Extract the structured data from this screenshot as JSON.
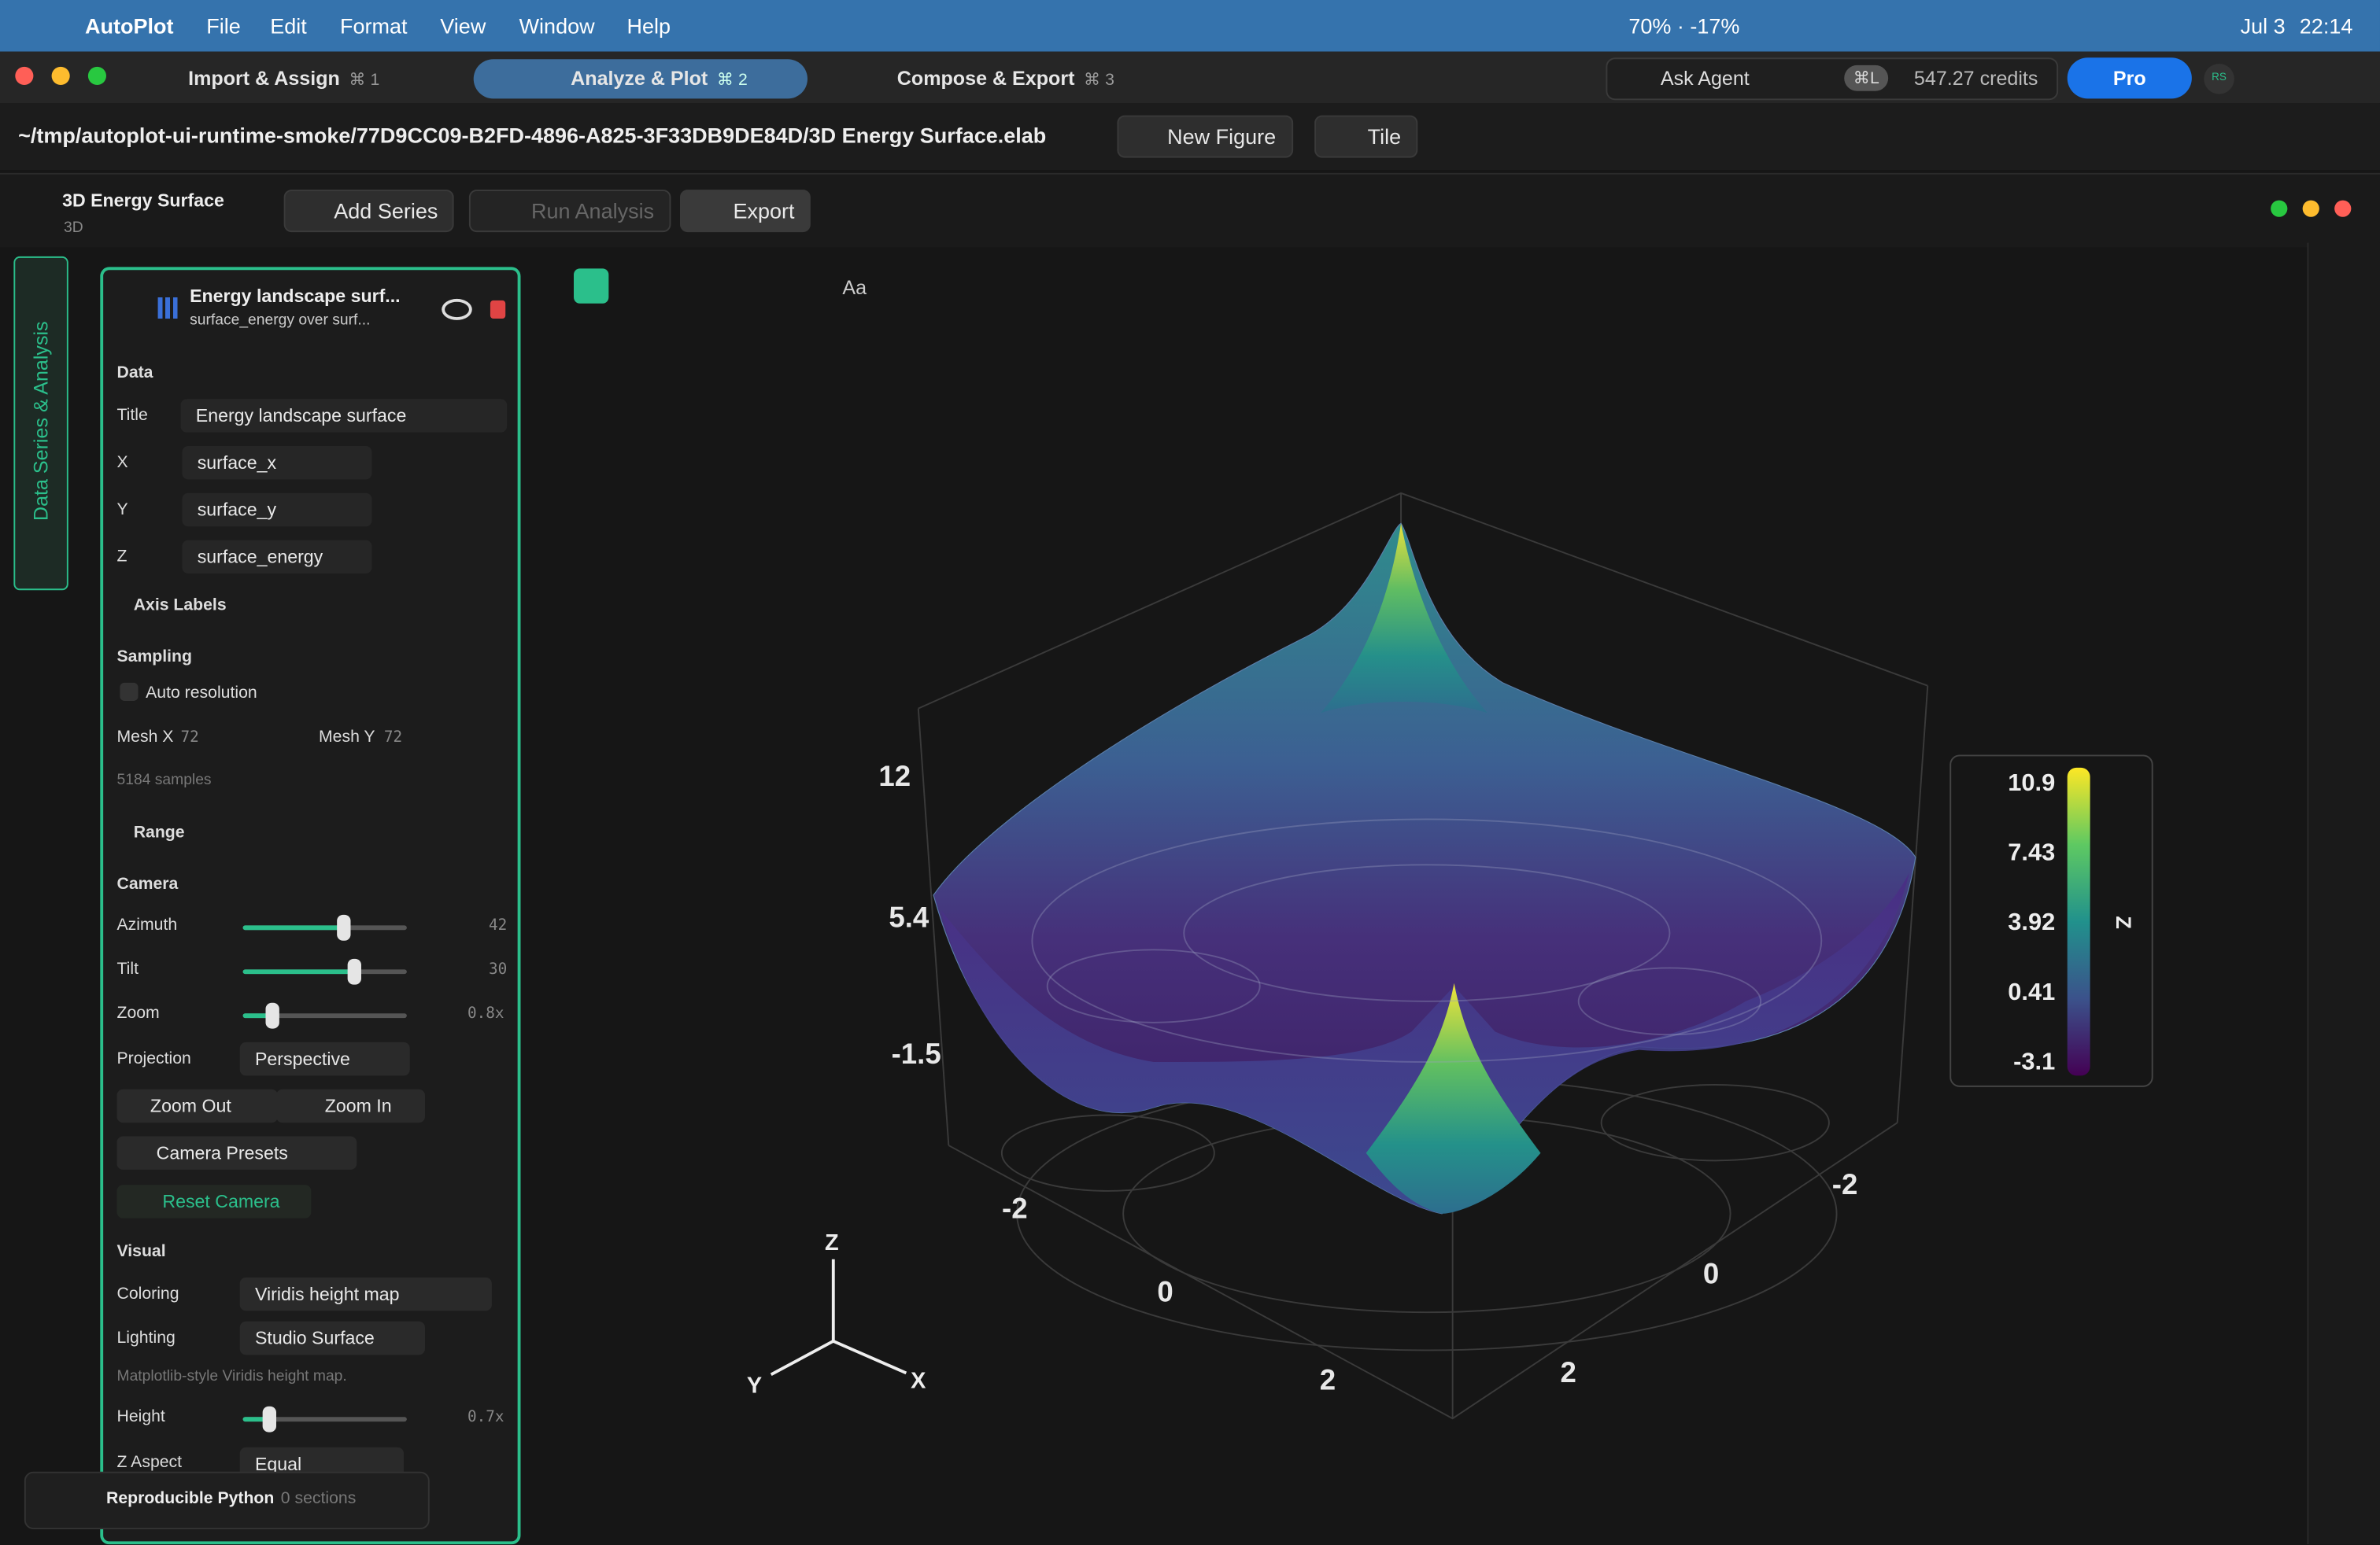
{
  "menubar": {
    "app": "AutoPlot",
    "menus": [
      "File",
      "Edit",
      "Format",
      "View",
      "Window",
      "Help"
    ],
    "battery": "70% · -17%",
    "date": "Jul 3",
    "time": "22:14"
  },
  "tabs": [
    {
      "label": "Import & Assign",
      "shortcut": "⌘ 1"
    },
    {
      "label": "Analyze & Plot",
      "shortcut": "⌘ 2"
    },
    {
      "label": "Compose & Export",
      "shortcut": "⌘ 3"
    }
  ],
  "account": {
    "agent": "Ask Agent",
    "shortcut": "⌘L",
    "credits": "547.27 credits",
    "plan": "Pro",
    "avatar": "RS"
  },
  "document": {
    "path": "~/tmp/autoplot-ui-runtime-smoke/77D9CC09-B2FD-4896-A825-3F33DB9DE84D/3D Energy Surface.elab",
    "new_figure": "New Figure",
    "tile": "Tile"
  },
  "figure": {
    "title": "3D Energy Surface",
    "kind": "3D",
    "add_series": "Add Series",
    "run_analysis": "Run Analysis",
    "export": "Export"
  },
  "sidebar_tab": "Data Series & Analysis",
  "series": {
    "name": "Energy landscape surf...",
    "subtitle": "surface_energy over surf...",
    "data": {
      "heading": "Data",
      "title_label": "Title",
      "title": "Energy landscape surface",
      "x_label": "X",
      "x": "surface_x",
      "y_label": "Y",
      "y": "surface_y",
      "z_label": "Z",
      "z": "surface_energy"
    },
    "axis_labels": "Axis Labels",
    "sampling": {
      "heading": "Sampling",
      "auto": "Auto resolution",
      "mesh_x_label": "Mesh X",
      "mesh_x": "72",
      "mesh_y_label": "Mesh Y",
      "mesh_y": "72",
      "samples": "5184 samples"
    },
    "range": "Range",
    "camera": {
      "heading": "Camera",
      "azimuth_label": "Azimuth",
      "azimuth": "42",
      "tilt_label": "Tilt",
      "tilt": "30",
      "zoom_label": "Zoom",
      "zoom": "0.8x",
      "projection_label": "Projection",
      "projection": "Perspective",
      "zoom_out": "Zoom Out",
      "zoom_in": "Zoom In",
      "presets": "Camera Presets",
      "reset": "Reset Camera"
    },
    "visual": {
      "heading": "Visual",
      "coloring_label": "Coloring",
      "coloring": "Viridis height map",
      "lighting_label": "Lighting",
      "lighting": "Studio Surface",
      "note": "Matplotlib-style Viridis height map.",
      "height_label": "Height",
      "height": "0.7x",
      "z_aspect_label": "Z Aspect",
      "z_aspect": "Equal"
    }
  },
  "toolbar": {
    "text_tool": "Aa"
  },
  "plot": {
    "z_ticks": [
      "12",
      "5.4",
      "-1.5"
    ],
    "x_ticks": [
      "-2",
      "0",
      "2"
    ],
    "y_ticks": [
      "-2",
      "0",
      "2"
    ],
    "colorbar": {
      "ticks": [
        "10.9",
        "7.43",
        "3.92",
        "0.41",
        "-3.1"
      ],
      "label": "Z"
    },
    "triad": {
      "z": "Z",
      "y": "Y",
      "x": "X"
    }
  },
  "python": {
    "title": "Reproducible Python",
    "sections": "0 sections"
  }
}
